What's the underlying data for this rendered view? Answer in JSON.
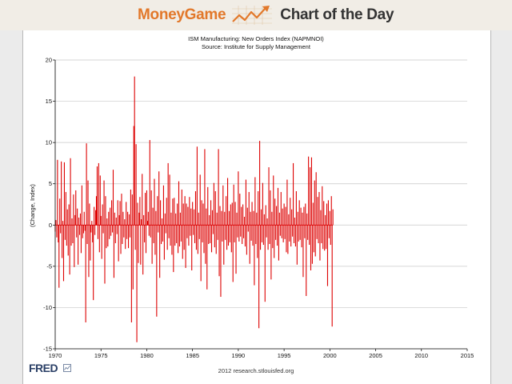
{
  "banner": {
    "brand_text": "MoneyGame",
    "brand_icon": "rising-line-chart-icon",
    "subtitle": "Chart of the Day",
    "brand_color": "#e2782a",
    "subtitle_color": "#333333"
  },
  "footer": {
    "logo_text": "FRED",
    "logo_icon": "fred-chart-icon",
    "credit": "2012 research.stlouisfed.org"
  },
  "colors": {
    "series": "#dd0000",
    "grid": "#c8c8c8",
    "axis": "#000000"
  },
  "chart_data": {
    "type": "line",
    "title": "ISM Manufacturing: New Orders Index (NAPMNOI)",
    "subtitle": "Source: Institute for Supply Management",
    "xlabel": "",
    "ylabel": "(Change, Index)",
    "xlim": [
      1970,
      2015
    ],
    "ylim": [
      -15,
      20
    ],
    "x_ticks": [
      "1970",
      "1975",
      "1980",
      "1985",
      "1990",
      "1995",
      "2000",
      "2005",
      "2010",
      "2015"
    ],
    "y_ticks": [
      "20",
      "15",
      "10",
      "5",
      "0",
      "-5",
      "-10",
      "-15"
    ],
    "grid": "horizontal",
    "legend": "none",
    "frequency": "monthly",
    "series": [
      {
        "start": "1970-01",
        "values": [
          -0.8,
          0.6,
          -1.5,
          7.9,
          -2.1,
          -7.6,
          3.2,
          -1.0,
          7.7,
          -4.0,
          0.5,
          -6.8,
          7.6,
          -1.8,
          4.0,
          -2.5,
          1.9,
          -3.7,
          2.5,
          -6.0,
          8.1,
          -2.5,
          0.8,
          -2.2,
          3.7,
          -5.1,
          1.2,
          4.2,
          -1.5,
          2.0,
          -4.8,
          0.9,
          -1.2,
          1.4,
          -3.4,
          4.8,
          -1.6,
          -1.0,
          1.6,
          -0.7,
          -11.8,
          9.9,
          -2.3,
          5.4,
          -6.3,
          2.6,
          -4.3,
          -0.9,
          0.5,
          -2.1,
          -9.1,
          2.2,
          -1.2,
          1.8,
          3.5,
          7.1,
          -1.7,
          7.5,
          -3.3,
          6.0,
          1.1,
          -4.1,
          2.5,
          -1.0,
          5.4,
          -7.1,
          3.5,
          -2.8,
          0.8,
          -2.6,
          1.6,
          -1.7,
          2.1,
          -1.3,
          3.0,
          -0.9,
          6.7,
          -6.4,
          1.5,
          -2.2,
          0.9,
          -1.1,
          3.0,
          -4.4,
          1.2,
          2.9,
          -3.5,
          3.8,
          -2.3,
          1.6,
          -1.5,
          0.7,
          -2.9,
          2.8,
          -1.7,
          1.6,
          -2.8,
          1.3,
          -1.5,
          4.3,
          -11.8,
          3.7,
          -7.8,
          12.0,
          18.0,
          -3.0,
          9.8,
          -14.2,
          2.7,
          -4.6,
          1.5,
          3.4,
          -4.8,
          0.7,
          6.2,
          -6.0,
          1.2,
          -2.1,
          3.9,
          -3.4,
          4.2,
          0.5,
          1.6,
          -1.3,
          10.3,
          -1.5,
          4.2,
          -4.7,
          2.1,
          -2.2,
          5.6,
          -3.6,
          1.7,
          -11.1,
          3.5,
          -0.9,
          6.5,
          -6.4,
          3.0,
          -2.3,
          0.8,
          -2.0,
          4.8,
          -4.2,
          1.4,
          -1.0,
          3.3,
          -3.0,
          7.5,
          -1.6,
          6.1,
          -2.5,
          1.5,
          -3.6,
          3.2,
          -5.7,
          3.3,
          -2.5,
          1.4,
          -2.2,
          2.6,
          -3.4,
          5.3,
          -2.6,
          1.5,
          -2.0,
          4.3,
          -4.1,
          2.6,
          -3.0,
          3.5,
          -5.2,
          2.6,
          -1.6,
          2.2,
          -2.5,
          3.4,
          -1.3,
          2.0,
          -5.5,
          2.8,
          -1.2,
          1.9,
          -2.2,
          4.1,
          -3.0,
          9.5,
          -3.5,
          1.5,
          -1.7,
          6.1,
          -6.8,
          3.0,
          -2.1,
          2.6,
          -3.4,
          9.2,
          -4.7,
          2.0,
          -7.8,
          4.6,
          -2.3,
          1.2,
          -2.2,
          3.0,
          -3.3,
          1.8,
          -1.1,
          5.1,
          -2.7,
          4.1,
          -3.5,
          1.5,
          -1.8,
          9.2,
          -6.2,
          2.3,
          -8.7,
          1.7,
          -2.0,
          4.8,
          -4.8,
          1.6,
          -1.8,
          3.5,
          -3.0,
          5.7,
          -2.5,
          1.7,
          -2.1,
          2.5,
          -3.3,
          2.7,
          -6.9,
          4.9,
          -2.1,
          2.8,
          -5.9,
          1.5,
          -1.5,
          6.5,
          -2.0,
          3.8,
          -1.4,
          2.2,
          -2.3,
          2.5,
          -1.6,
          1.0,
          -2.6,
          5.5,
          -3.6,
          2.1,
          -0.8,
          4.0,
          -4.7,
          1.6,
          -1.9,
          2.8,
          -2.5,
          1.7,
          -7.3,
          5.8,
          -2.3,
          1.5,
          -4.0,
          4.1,
          -12.5,
          10.2,
          -3.0,
          1.9,
          -2.1,
          5.1,
          -2.4,
          1.3,
          -9.3,
          2.4,
          -1.5,
          0.8,
          -3.0,
          7.0,
          -2.3,
          4.2,
          -6.6,
          1.6,
          -2.8,
          6.0,
          -4.0,
          3.2,
          -1.8,
          2.3,
          -2.5,
          4.5,
          -4.3,
          1.5,
          -1.3,
          4.0,
          -1.6,
          2.0,
          -2.1,
          2.6,
          -1.7,
          2.2,
          -3.3,
          5.5,
          -3.5,
          1.3,
          -2.0,
          3.3,
          -2.6,
          1.9,
          -1.4,
          7.5,
          -2.2,
          0.9,
          -2.6,
          4.1,
          -4.8,
          1.6,
          -2.0,
          3.0,
          -1.8,
          2.1,
          -2.7,
          1.5,
          -6.3,
          2.2,
          -1.6,
          2.6,
          -8.6,
          1.4,
          -1.8,
          8.3,
          -2.4,
          7.0,
          -5.5,
          8.2,
          -4.7,
          2.7,
          -3.3,
          5.4,
          -3.8,
          6.4,
          -1.7,
          3.4,
          -2.2,
          4.0,
          -4.3,
          1.8,
          -2.2,
          4.7,
          -2.9,
          2.9,
          -3.1,
          1.2,
          -2.9,
          2.6,
          -7.4,
          3.0,
          -1.6,
          1.7,
          -2.4,
          3.5,
          -12.3,
          1.9
        ]
      }
    ]
  }
}
